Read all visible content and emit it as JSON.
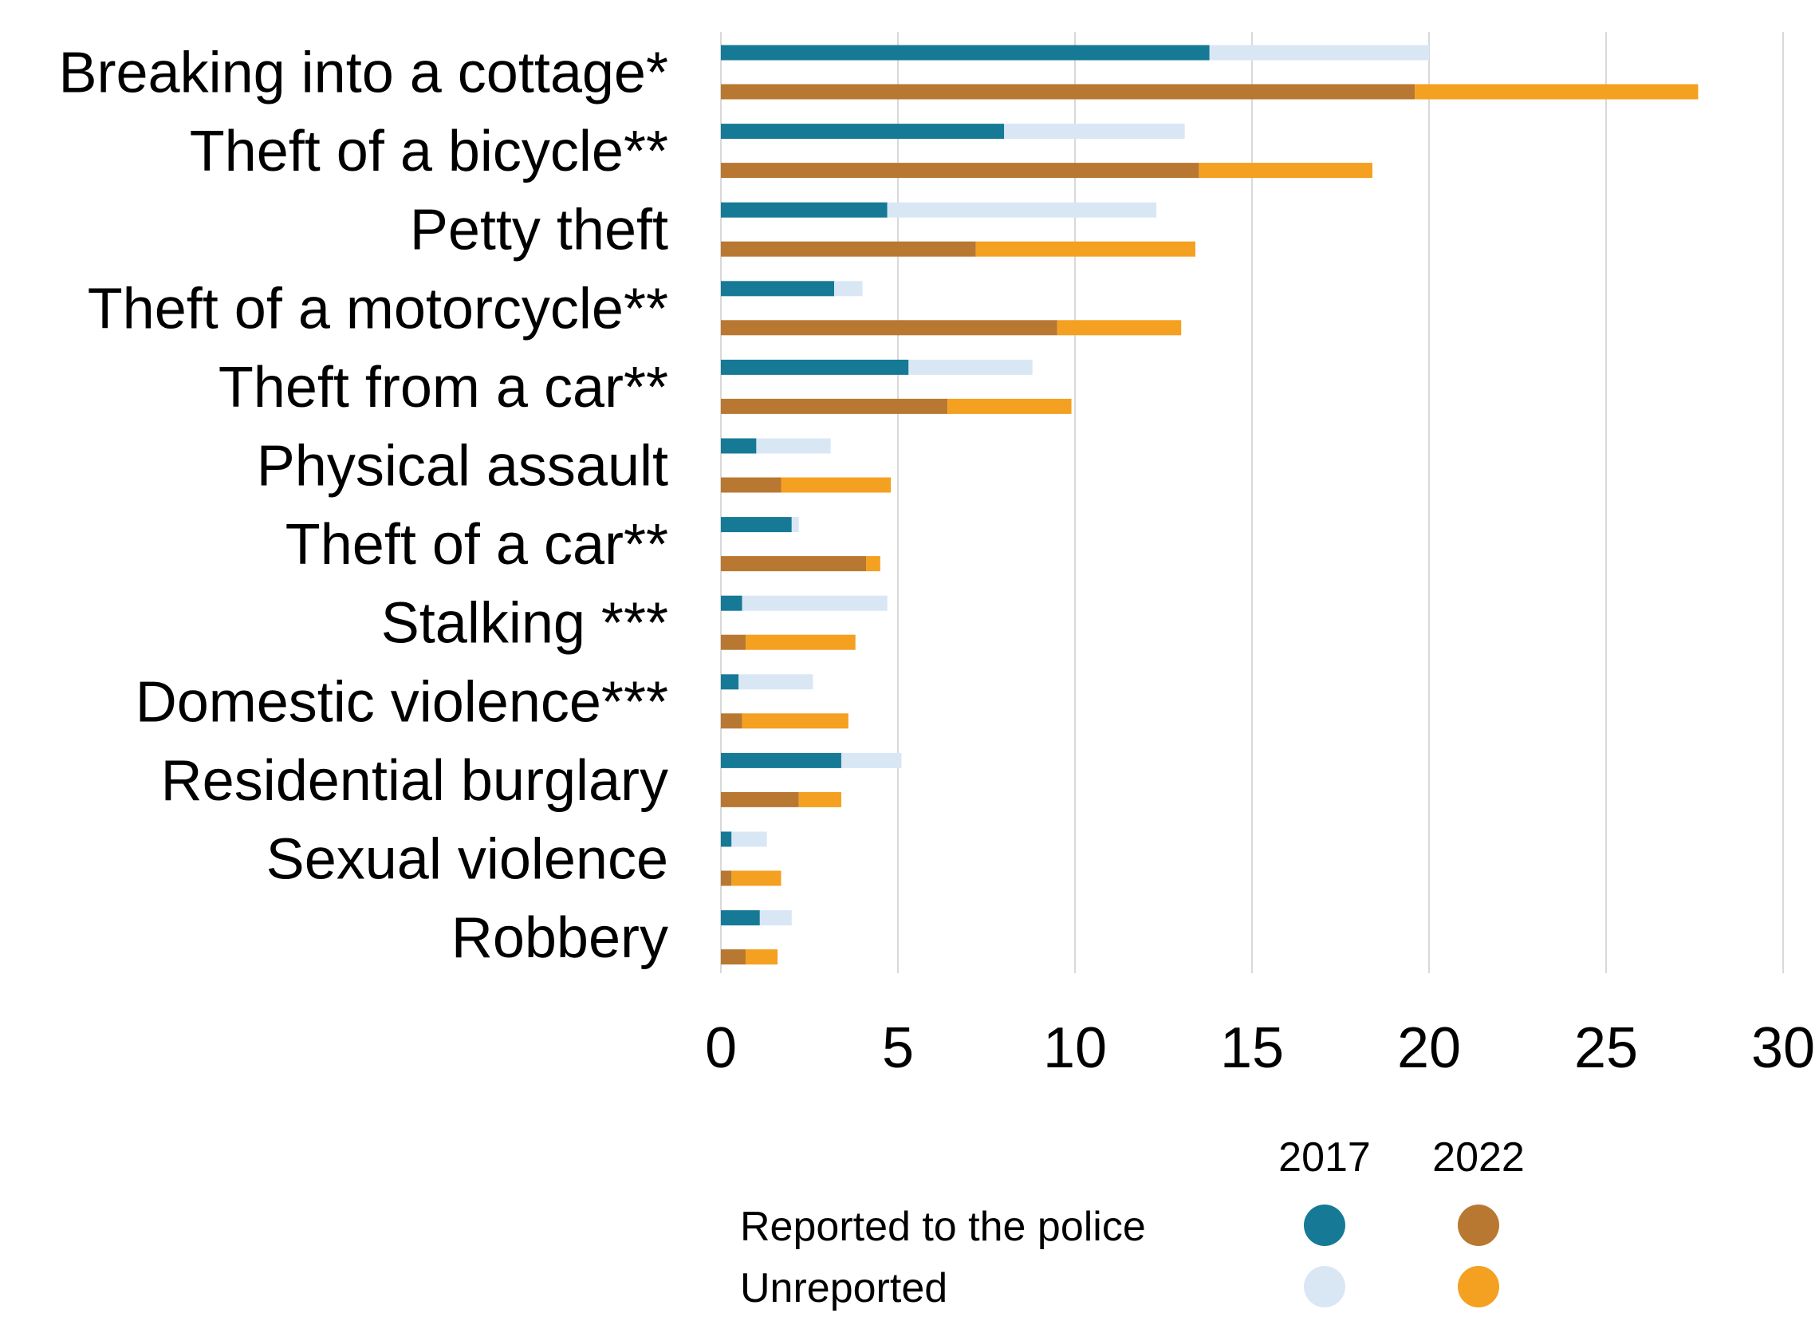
{
  "chart_data": {
    "type": "bar",
    "orientation": "horizontal",
    "stacked": true,
    "title": "",
    "xlabel": "",
    "ylabel": "",
    "xlim": [
      0,
      30
    ],
    "xticks": [
      0,
      5,
      10,
      15,
      20,
      25,
      30
    ],
    "grid": "vertical",
    "legend_position": "bottom-right",
    "categories": [
      "Breaking into a cottage*",
      "Theft of a bicycle**",
      "Petty theft",
      "Theft of a motorcycle**",
      "Theft from a car**",
      "Physical assault",
      "Theft of a car**",
      "Stalking ***",
      "Domestic violence***",
      "Residential burglary",
      "Sexual violence",
      "Robbery"
    ],
    "groups": [
      "2017",
      "2022"
    ],
    "segments": [
      "Reported to the police",
      "Unreported"
    ],
    "colors": {
      "2017": {
        "Reported to the police": "#167a96",
        "Unreported": "#d9e7f5"
      },
      "2022": {
        "Reported to the police": "#b87832",
        "Unreported": "#f4a020"
      }
    },
    "series": [
      {
        "group": "2017",
        "segment": "Reported to the police",
        "values": [
          13.8,
          8.0,
          4.7,
          3.2,
          5.3,
          1.0,
          2.0,
          0.6,
          0.5,
          3.4,
          0.3,
          1.1
        ]
      },
      {
        "group": "2017",
        "segment": "Unreported",
        "values": [
          6.2,
          5.1,
          7.6,
          0.8,
          3.5,
          2.1,
          0.2,
          4.1,
          2.1,
          1.7,
          1.0,
          0.9
        ]
      },
      {
        "group": "2022",
        "segment": "Reported to the police",
        "values": [
          19.6,
          13.5,
          7.2,
          9.5,
          6.4,
          1.7,
          4.1,
          0.7,
          0.6,
          2.2,
          0.3,
          0.7
        ]
      },
      {
        "group": "2022",
        "segment": "Unreported",
        "values": [
          8.0,
          4.9,
          6.2,
          3.5,
          3.5,
          3.1,
          0.4,
          3.1,
          3.0,
          1.2,
          1.4,
          0.9
        ]
      }
    ]
  },
  "legend": {
    "headers": [
      "2017",
      "2022"
    ],
    "rows": [
      {
        "label": "Reported to the police",
        "segment": "Reported to the police"
      },
      {
        "label": "Unreported",
        "segment": "Unreported"
      }
    ]
  }
}
